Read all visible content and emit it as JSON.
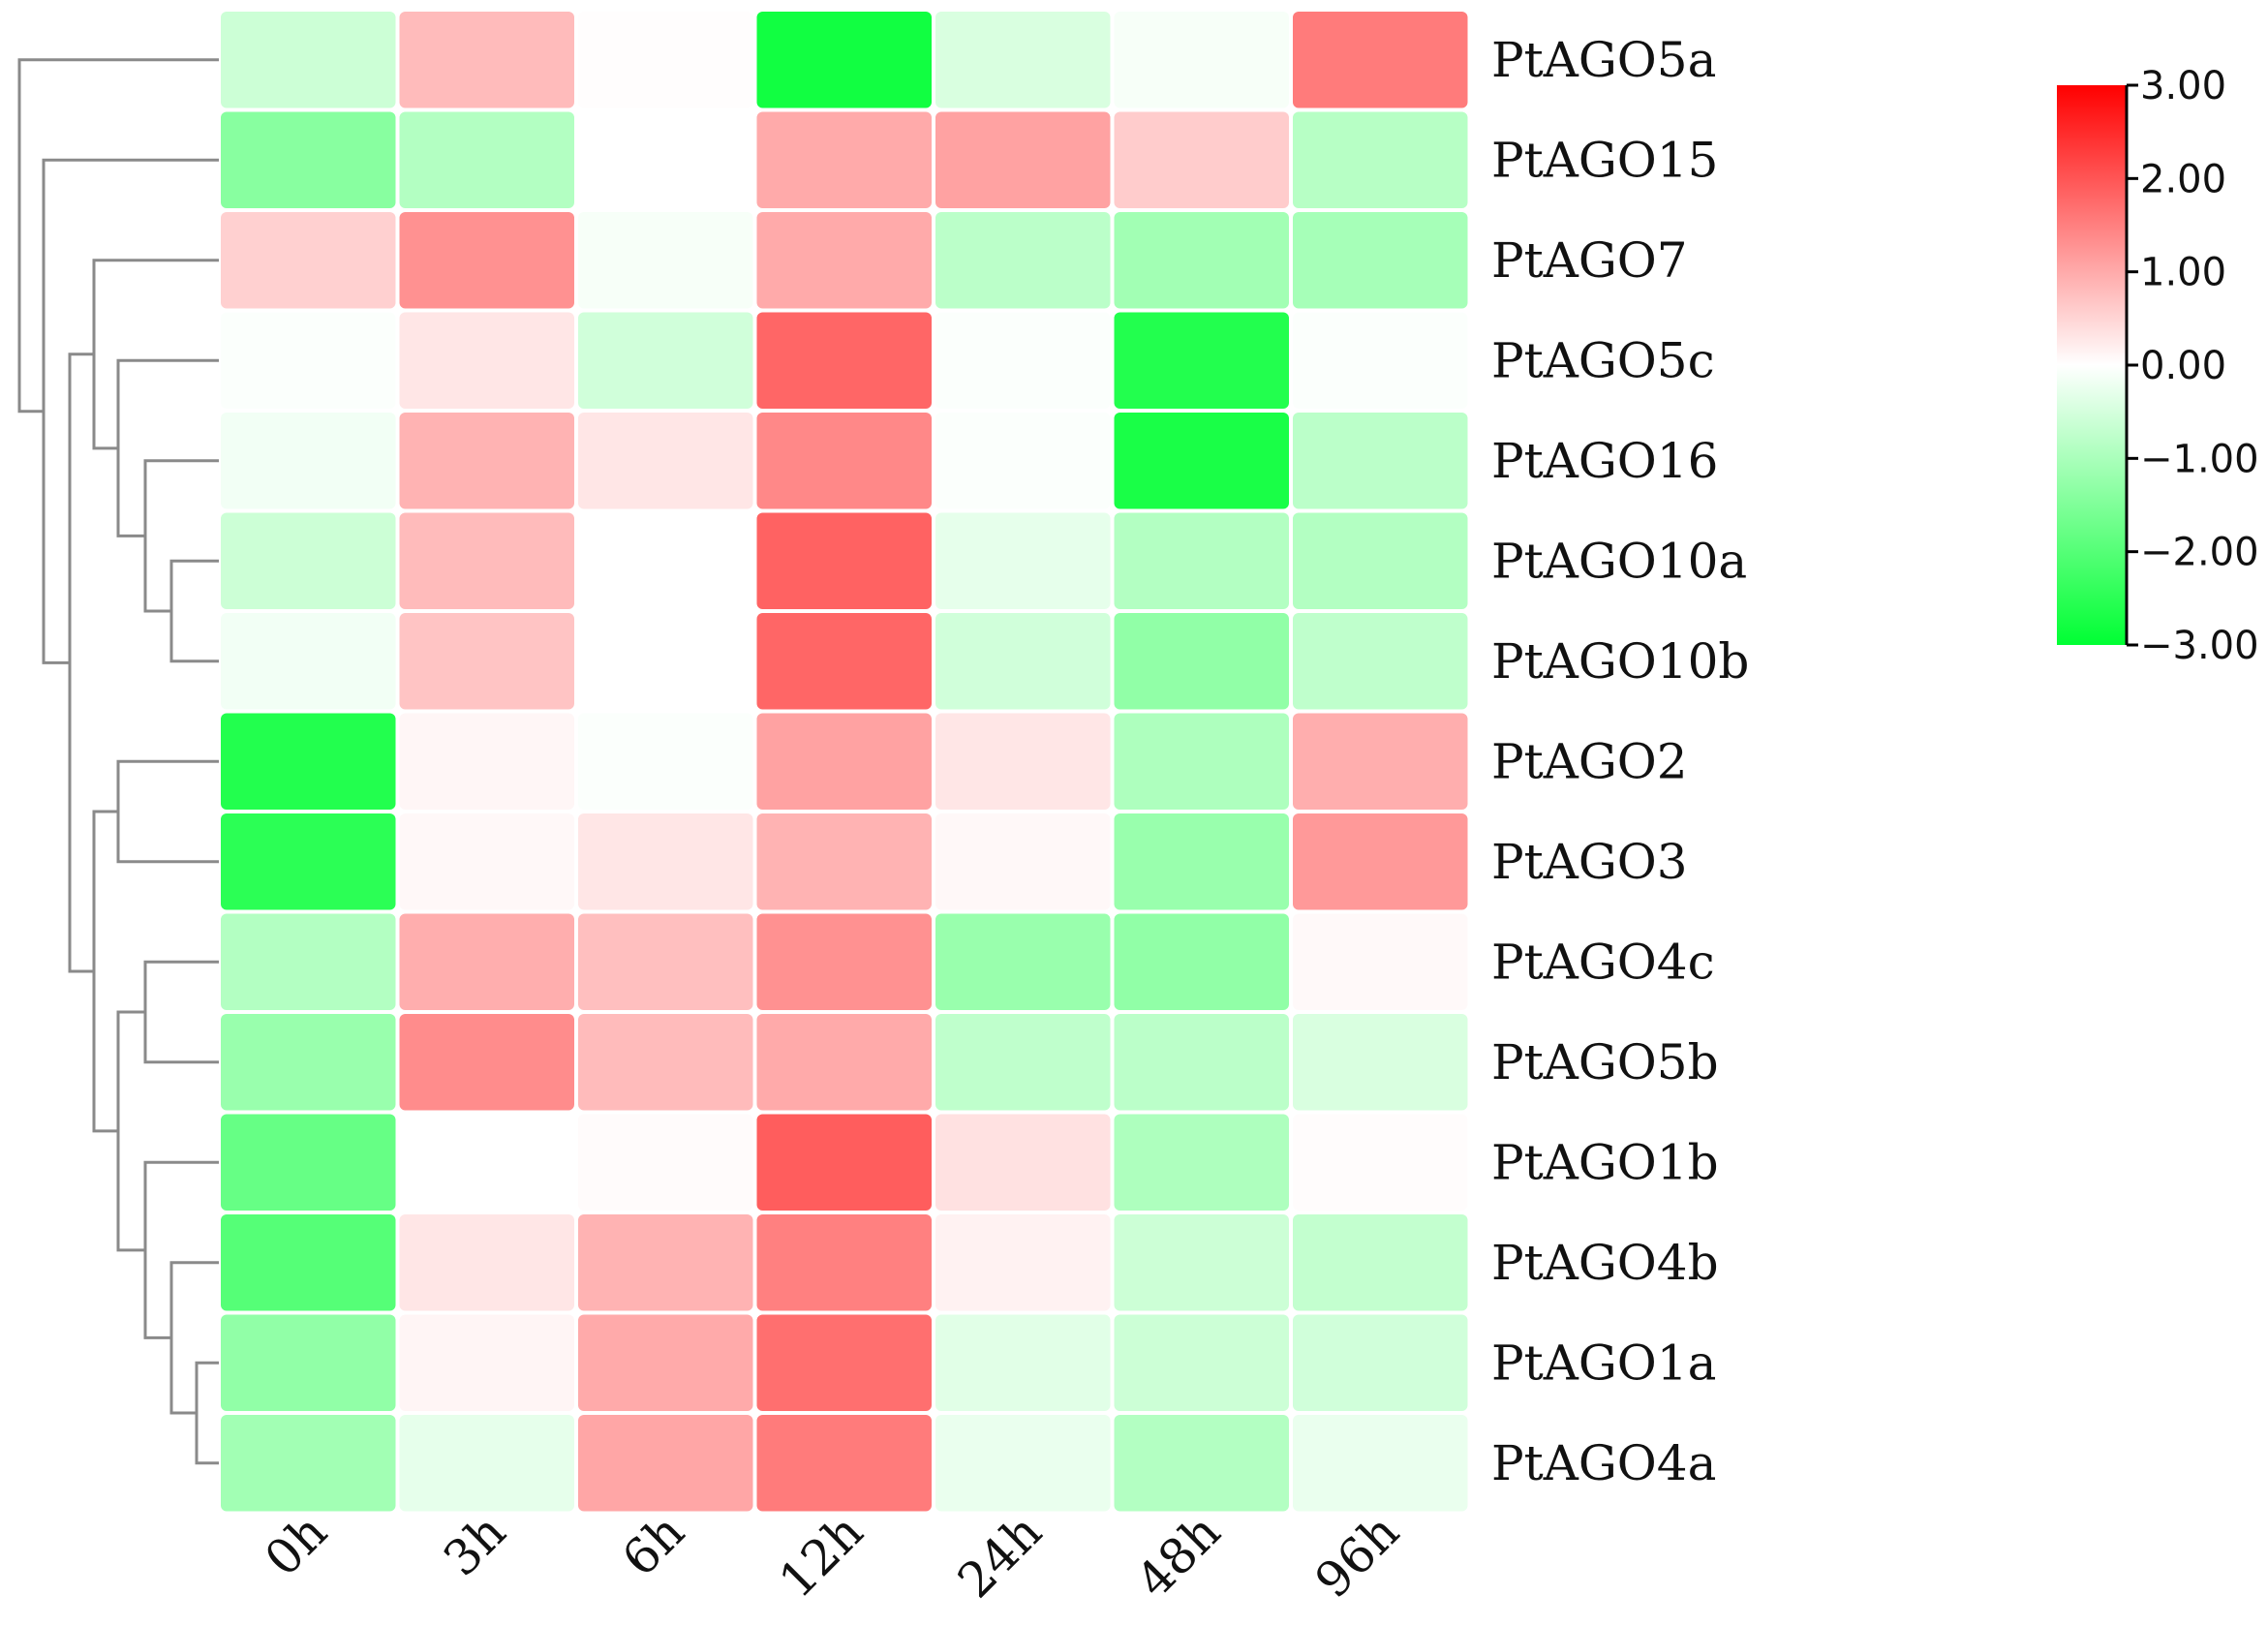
{
  "chart_data": {
    "type": "heatmap",
    "title": "",
    "xlabel": "",
    "ylabel": "",
    "columns": [
      "0h",
      "3h",
      "6h",
      "12h",
      "24h",
      "48h",
      "96h"
    ],
    "rows": [
      "PtAGO5a",
      "PtAGO15",
      "PtAGO7",
      "PtAGO5c",
      "PtAGO16",
      "PtAGO10a",
      "PtAGO10b",
      "PtAGO2",
      "PtAGO3",
      "PtAGO4c",
      "PtAGO5b",
      "PtAGO1b",
      "PtAGO4b",
      "PtAGO1a",
      "PtAGO4a"
    ],
    "values": [
      [
        -0.6,
        0.8,
        0.02,
        -2.8,
        -0.45,
        -0.1,
        1.55
      ],
      [
        -1.4,
        -0.9,
        0.0,
        1.0,
        1.1,
        0.6,
        -0.85
      ],
      [
        0.55,
        1.3,
        -0.1,
        1.0,
        -0.8,
        -1.1,
        -1.05
      ],
      [
        -0.05,
        0.3,
        -0.55,
        1.8,
        -0.05,
        -2.6,
        -0.05
      ],
      [
        -0.15,
        0.9,
        0.3,
        1.4,
        -0.05,
        -2.7,
        -0.8
      ],
      [
        -0.6,
        0.8,
        0.0,
        1.85,
        -0.3,
        -0.9,
        -0.9
      ],
      [
        -0.15,
        0.7,
        0.0,
        1.8,
        -0.55,
        -1.3,
        -0.75
      ],
      [
        -2.6,
        0.1,
        -0.05,
        1.1,
        0.3,
        -0.95,
        0.95
      ],
      [
        -2.5,
        0.08,
        0.3,
        0.9,
        0.08,
        -1.2,
        1.2
      ],
      [
        -0.9,
        0.95,
        0.75,
        1.3,
        -1.2,
        -1.3,
        0.07
      ],
      [
        -1.2,
        1.35,
        0.8,
        1.0,
        -0.75,
        -0.8,
        -0.45
      ],
      [
        -1.8,
        0.0,
        0.05,
        1.9,
        0.35,
        -0.95,
        0.03
      ],
      [
        -2.0,
        0.3,
        0.9,
        1.5,
        0.15,
        -0.6,
        -0.7
      ],
      [
        -1.3,
        0.12,
        1.0,
        1.7,
        -0.35,
        -0.6,
        -0.55
      ],
      [
        -1.1,
        -0.3,
        1.05,
        1.55,
        -0.25,
        -0.9,
        -0.25
      ]
    ],
    "color_scale": {
      "min": -3.0,
      "max": 3.0,
      "low_color": "#00ff33",
      "mid_color": "#ffffff",
      "high_color": "#ff0000",
      "ticks": [
        "3.00",
        "2.00",
        "1.00",
        "0.00",
        "−1.00",
        "−2.00",
        "−3.00"
      ]
    },
    "dendrogram_color": "#8a8a8a",
    "legend_position": "top-right"
  }
}
